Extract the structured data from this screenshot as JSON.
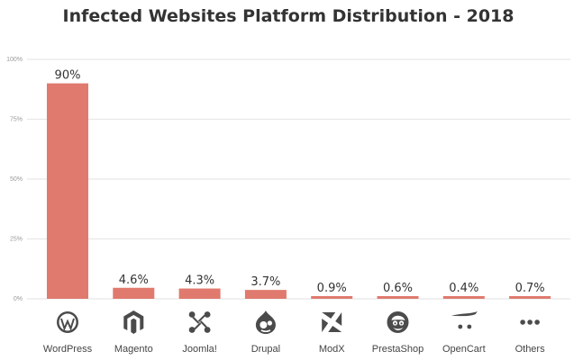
{
  "chart_data": {
    "type": "bar",
    "title": "Infected Websites Platform Distribution - 2018",
    "categories": [
      "WordPress",
      "Magento",
      "Joomla!",
      "Drupal",
      "ModX",
      "PrestaShop",
      "OpenCart",
      "Others"
    ],
    "values": [
      90,
      4.6,
      4.3,
      3.7,
      0.9,
      0.6,
      0.4,
      0.7
    ],
    "value_labels": [
      "90%",
      "4.6%",
      "4.3%",
      "3.7%",
      "0.9%",
      "0.6%",
      "0.4%",
      "0.7%"
    ],
    "ylim": [
      0,
      100
    ],
    "yticks": [
      0,
      25,
      50,
      75,
      100
    ],
    "ytick_labels": [
      "0%",
      "25%",
      "50%",
      "75%",
      "100%"
    ],
    "grid": true,
    "bar_color": "#e07a6e",
    "icons": [
      "wordpress-icon",
      "magento-icon",
      "joomla-icon",
      "drupal-icon",
      "modx-icon",
      "prestashop-icon",
      "opencart-icon",
      "others-dots-icon"
    ]
  }
}
